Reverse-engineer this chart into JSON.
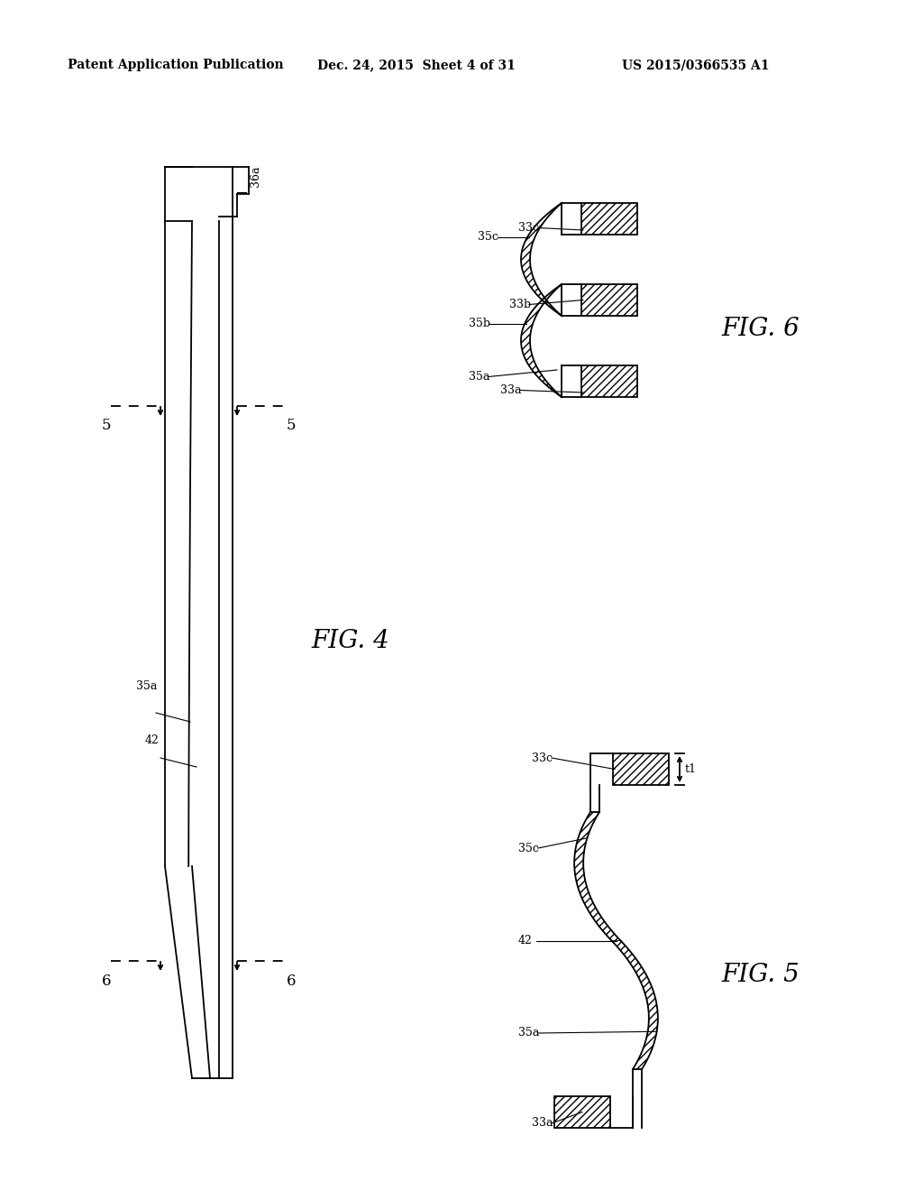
{
  "bg_color": "#ffffff",
  "header_text1": "Patent Application Publication",
  "header_text2": "Dec. 24, 2015  Sheet 4 of 31",
  "header_text3": "US 2015/0366535 A1",
  "fig4_label": "FIG. 4",
  "fig5_label": "FIG. 5",
  "fig6_label": "FIG. 6",
  "lc": "#000000"
}
